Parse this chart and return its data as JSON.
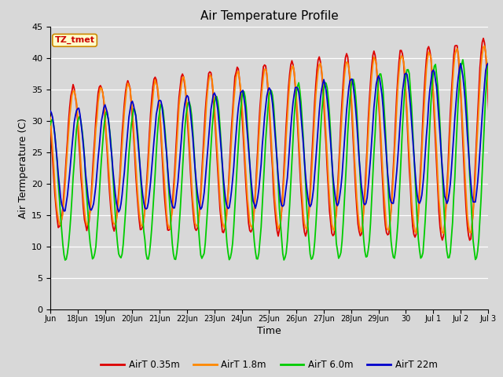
{
  "title": "Air Temperature Profile",
  "xlabel": "Time",
  "ylabel": "Air Termperature (C)",
  "ylim": [
    0,
    45
  ],
  "yticks": [
    0,
    5,
    10,
    15,
    20,
    25,
    30,
    35,
    40,
    45
  ],
  "background_color": "#d8d8d8",
  "plot_bg_color": "#d8d8d8",
  "grid_color": "#ffffff",
  "lines": {
    "AirT 0.35m": {
      "color": "#dd0000"
    },
    "AirT 1.8m": {
      "color": "#ff8800"
    },
    "AirT 6.0m": {
      "color": "#00cc00"
    },
    "AirT 22m": {
      "color": "#0000cc"
    }
  },
  "legend_box": {
    "text": "TZ_tmet",
    "facecolor": "#ffffcc",
    "edgecolor": "#cc8800",
    "textcolor": "#cc0000"
  },
  "tick_labels": [
    "Jun",
    "18Jun",
    "19Jun",
    "20Jun",
    "21Jun",
    "22Jun",
    "23Jun",
    "24Jun",
    "25Jun",
    "26Jun",
    "27Jun",
    "28Jun",
    "29Jun",
    "30",
    "Jul 1",
    "Jul 2",
    "Jul 3"
  ]
}
